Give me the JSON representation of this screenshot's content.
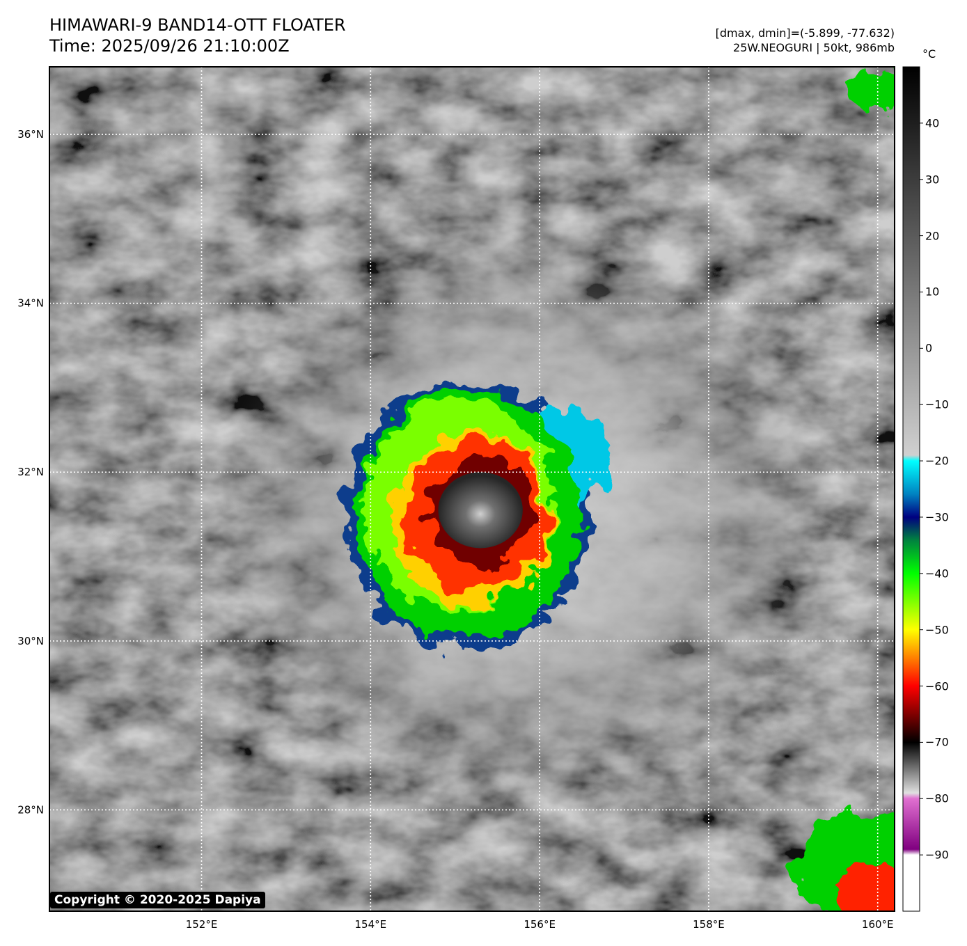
{
  "header": {
    "title_line1": "HIMAWARI-9 BAND14-OTT FLOATER",
    "title_line2": "Time: 2025/09/26 21:10:00Z",
    "info_line1": "[dmax, dmin]=(-5.899, -77.632)",
    "info_line2": "25W.NEOGURI | 50kt, 986mb"
  },
  "map": {
    "lon_range": [
      150.2,
      160.2
    ],
    "lat_range": [
      26.8,
      36.8
    ],
    "lon_ticks": [
      {
        "value": 152,
        "label": "152°E"
      },
      {
        "value": 154,
        "label": "154°E"
      },
      {
        "value": 156,
        "label": "156°E"
      },
      {
        "value": 158,
        "label": "158°E"
      },
      {
        "value": 160,
        "label": "160°E"
      }
    ],
    "lat_ticks": [
      {
        "value": 28,
        "label": "28°N"
      },
      {
        "value": 30,
        "label": "30°N"
      },
      {
        "value": 32,
        "label": "32°N"
      },
      {
        "value": 34,
        "label": "34°N"
      },
      {
        "value": 36,
        "label": "36°N"
      }
    ],
    "gridlines": true,
    "storm_center": {
      "lon": 155.2,
      "lat": 31.6
    }
  },
  "colorbar": {
    "unit": "°C",
    "range": [
      -100,
      50
    ],
    "ticks": [
      {
        "value": 40,
        "label": "40"
      },
      {
        "value": 30,
        "label": "30"
      },
      {
        "value": 20,
        "label": "20"
      },
      {
        "value": 10,
        "label": "10"
      },
      {
        "value": 0,
        "label": "0"
      },
      {
        "value": -10,
        "label": "−10"
      },
      {
        "value": -20,
        "label": "−20"
      },
      {
        "value": -30,
        "label": "−30"
      },
      {
        "value": -40,
        "label": "−40"
      },
      {
        "value": -50,
        "label": "−50"
      },
      {
        "value": -60,
        "label": "−60"
      },
      {
        "value": -70,
        "label": "−70"
      },
      {
        "value": -80,
        "label": "−80"
      },
      {
        "value": -90,
        "label": "−90"
      }
    ],
    "stops": [
      {
        "value": 50,
        "color": "#000000"
      },
      {
        "value": -19,
        "color": "#d0d0d0"
      },
      {
        "value": -20,
        "color": "#00ffff"
      },
      {
        "value": -26,
        "color": "#0080c0"
      },
      {
        "value": -30,
        "color": "#000080"
      },
      {
        "value": -34,
        "color": "#008040"
      },
      {
        "value": -40,
        "color": "#00ff00"
      },
      {
        "value": -50,
        "color": "#ffff00"
      },
      {
        "value": -55,
        "color": "#ff8000"
      },
      {
        "value": -60,
        "color": "#ff0000"
      },
      {
        "value": -65,
        "color": "#800000"
      },
      {
        "value": -70,
        "color": "#000000"
      },
      {
        "value": -79,
        "color": "#e0e0e0"
      },
      {
        "value": -80,
        "color": "#e070d0"
      },
      {
        "value": -89,
        "color": "#800080"
      },
      {
        "value": -90,
        "color": "#ffffff"
      },
      {
        "value": -100,
        "color": "#ffffff"
      }
    ]
  },
  "copyright": "Copyright © 2020-2025 Dapiya"
}
